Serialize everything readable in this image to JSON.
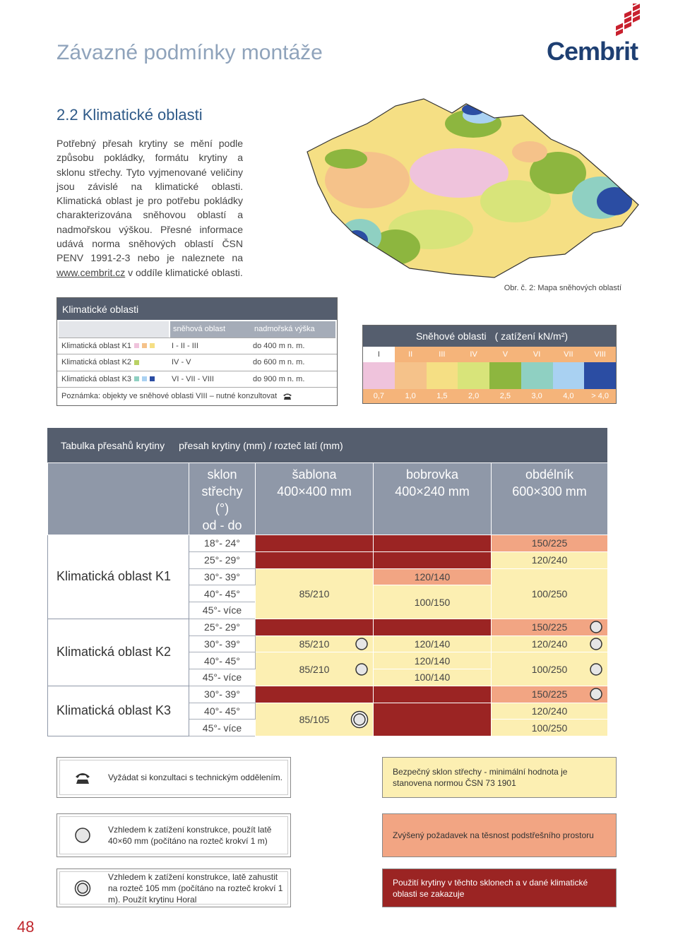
{
  "header": {
    "title": "Závazné podmínky montáže",
    "logo": "Cembrit"
  },
  "section": {
    "heading": "2.2 Klimatické oblasti",
    "paragraph": {
      "before": "Potřebný přesah krytiny se mění podle způsobu pokládky, formátu krytiny a sklonu střechy. Tyto vyjmenované veličiny jsou závislé na klimatické oblasti. Klimatická oblast je pro potřebu pokládky charakterizována sněhovou oblastí a nadmořskou výškou. Přesné informace udává norma sněhových oblastí ČSN PENV 1991-2-3 nebo je naleznete na ",
      "link": "www.cembrit.cz",
      "after": " v oddíle klimatické oblasti."
    }
  },
  "map": {
    "caption": "Obr. č. 2: Mapa sněhových oblastí"
  },
  "climate_table": {
    "title": "Klimatické oblasti",
    "headers": [
      "sněhová oblast",
      "nadmořská výška"
    ],
    "rows": [
      {
        "name": "Klimatická oblast K1",
        "swatches": [
          "#efc3dc",
          "#f5c28a",
          "#f5df84"
        ],
        "snow": "I - II - III",
        "altitude": "do 400 m n. m."
      },
      {
        "name": "Klimatická oblast K2",
        "swatches": [
          "#b9d164"
        ],
        "snow": "IV - V",
        "altitude": "do 600 m n. m."
      },
      {
        "name": "Klimatická oblast K3",
        "swatches": [
          "#8fd0c2",
          "#a9d1f2",
          "#2b4da3"
        ],
        "snow": "VI - VII - VIII",
        "altitude": "do 900 m n. m."
      }
    ],
    "note": "Poznámka: objekty ve sněhové oblasti VIII – nutné konzultovat"
  },
  "snow_table": {
    "title": "Sněhové oblasti",
    "unit": "( zatížení kN/m²)",
    "zones": [
      {
        "label": "I",
        "color": "#efc3dc",
        "load": "0,7"
      },
      {
        "label": "II",
        "color": "#f5c28a",
        "load": "1,0"
      },
      {
        "label": "III",
        "color": "#f5df84",
        "load": "1,5"
      },
      {
        "label": "IV",
        "color": "#d8e47a",
        "load": "2,0"
      },
      {
        "label": "V",
        "color": "#8db63f",
        "load": "2,5"
      },
      {
        "label": "VI",
        "color": "#8fd0c2",
        "load": "3,0"
      },
      {
        "label": "VII",
        "color": "#a9d1f2",
        "load": "4,0"
      },
      {
        "label": "VIII",
        "color": "#2b4da3",
        "load": "> 4,0"
      }
    ]
  },
  "overlap_table": {
    "title": "Tabulka přesahů krytiny",
    "subtitle": "přesah krytiny (mm) / rozteč latí (mm)",
    "columns": [
      [
        "sklon",
        "střechy",
        "(°)",
        "od - do"
      ],
      [
        "šablona",
        "400×400 mm"
      ],
      [
        "bobrovka",
        "400×240 mm"
      ],
      [
        "obdélník",
        "600×300 mm"
      ]
    ],
    "regions": [
      {
        "name": "Klimatická oblast K1",
        "rows": [
          {
            "slope": "18°- 24°",
            "cells": [
              {
                "fill": "#9b2423"
              },
              {
                "fill": "#9b2423"
              },
              {
                "fill": "#f2a583",
                "text": "150/225"
              }
            ]
          },
          {
            "slope": "25°- 29°",
            "cells": [
              {
                "fill": "#9b2423"
              },
              {
                "fill": "#9b2423"
              },
              {
                "fill": "#fcefb2",
                "text": "120/240"
              }
            ]
          },
          {
            "slope": "30°- 39°",
            "cells": [
              {
                "fill": "#fcefb2",
                "text": "85/210",
                "rowspan": 3
              },
              {
                "fill": "#f2a583",
                "text": "120/140"
              },
              {
                "fill": "#fcefb2",
                "text": "100/250",
                "rowspan": 3
              }
            ]
          },
          {
            "slope": "40°- 45°",
            "cells": [
              {
                "fill": "#fcefb2",
                "text": "100/150",
                "rowspan": 2
              }
            ]
          },
          {
            "slope": "45°- více",
            "cells": []
          }
        ]
      },
      {
        "name": "Klimatická oblast K2",
        "rows": [
          {
            "slope": "25°- 29°",
            "cells": [
              {
                "fill": "#9b2423"
              },
              {
                "fill": "#9b2423"
              },
              {
                "fill": "#f2a583",
                "text": "150/225",
                "icon": "circle"
              }
            ]
          },
          {
            "slope": "30°- 39°",
            "cells": [
              {
                "fill": "#fcefb2",
                "text": "85/210",
                "icon": "circle"
              },
              {
                "fill": "#fcefb2",
                "text": "120/140"
              },
              {
                "fill": "#fcefb2",
                "text": "120/240",
                "icon": "circle"
              }
            ]
          },
          {
            "slope": "40°- 45°",
            "cells": [
              {
                "fill": "#fcefb2",
                "text": "85/210",
                "rowspan": 2,
                "icon": "circle"
              },
              {
                "fill": "#fcefb2",
                "text": "120/140"
              },
              {
                "fill": "#fcefb2",
                "text": "100/250",
                "rowspan": 2,
                "icon": "circle"
              }
            ]
          },
          {
            "slope": "45°- více",
            "cells": [
              {
                "fill": "#fcefb2",
                "text": "100/140"
              }
            ]
          }
        ]
      },
      {
        "name": "Klimatická oblast K3",
        "rows": [
          {
            "slope": "30°- 39°",
            "cells": [
              {
                "fill": "#9b2423"
              },
              {
                "fill": "#9b2423"
              },
              {
                "fill": "#f2a583",
                "text": "150/225",
                "icon": "circle"
              }
            ]
          },
          {
            "slope": "40°- 45°",
            "cells": [
              {
                "fill": "#fcefb2",
                "text": "85/105",
                "rowspan": 2,
                "icon": "double"
              },
              {
                "fill": "#9b2423",
                "rowspan": 2
              },
              {
                "fill": "#fcefb2",
                "text": "120/240"
              }
            ]
          },
          {
            "slope": "45°- více",
            "cells": [
              {
                "fill": "#fcefb2",
                "text": "100/250"
              }
            ]
          }
        ]
      }
    ]
  },
  "legend": {
    "icons": [
      {
        "icon": "phone",
        "text": "Vyžádat si konzultaci s technickým oddělením."
      },
      {
        "icon": "circle",
        "text": "Vzhledem k zatížení konstrukce, použít latě 40×60 mm (počítáno na rozteč krokví 1 m)"
      },
      {
        "icon": "double",
        "text": "Vzhledem k zatížení konstrukce, latě zahustit na rozteč 105 mm (počítáno na rozteč krokví 1 m). Použít krytinu Horal"
      }
    ],
    "fills": [
      {
        "fill": "#fcefb2",
        "color": "#333333",
        "text": "Bezpečný sklon střechy - minimální hodnota je stanovena normou ČSN 73 1901"
      },
      {
        "fill": "#f2a583",
        "color": "#333333",
        "text": "Zvýšený požadavek na těsnost podstřešního prostoru"
      },
      {
        "fill": "#9b2423",
        "color": "#ffffff",
        "text": "Použití krytiny v těchto sklonech a v dané klimatické oblasti se zakazuje"
      }
    ]
  },
  "page_number": "48"
}
